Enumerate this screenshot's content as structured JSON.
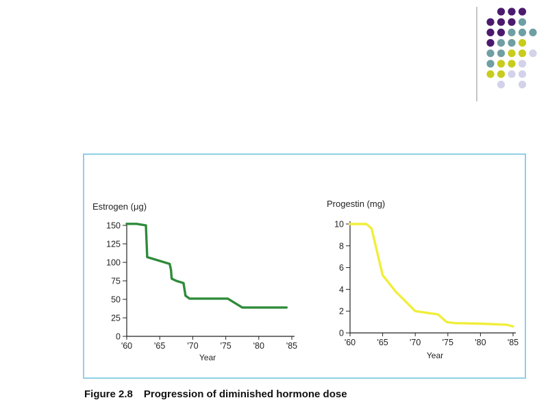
{
  "decoration": {
    "colors": {
      "purple": "#4b1a6e",
      "teal": "#6f9fa3",
      "yellow": "#c9cc1c",
      "lavender": "#d4d2ea",
      "rule": "#b0b0b0"
    }
  },
  "caption": {
    "number": "Figure 2.8",
    "text": "Progression of diminished hormone dose"
  },
  "chart_data": [
    {
      "type": "line",
      "ylabel": "Estrogen (μg)",
      "xlabel": "Year",
      "xlim": [
        1960,
        1985
      ],
      "ylim": [
        0,
        150
      ],
      "x_ticks": [
        1960,
        1965,
        1970,
        1975,
        1980,
        1985
      ],
      "x_tick_labels": [
        "'60",
        "'65",
        "'70",
        "'75",
        "'80",
        "'85"
      ],
      "y_ticks": [
        0,
        25,
        50,
        75,
        100,
        125,
        150
      ],
      "y_tick_labels": [
        "0",
        "25",
        "50",
        "75",
        "100",
        "125",
        "150"
      ],
      "color": "#2e8b3a",
      "series": [
        {
          "x": [
            1960,
            1961.5,
            1962.9,
            1963.1,
            1966.5,
            1966.7,
            1966.8,
            1967.5,
            1968.6,
            1968.9,
            1969.5,
            1975.3,
            1977.5,
            1980,
            1984.2
          ],
          "values": [
            152,
            152,
            150,
            107,
            98,
            90,
            78,
            75,
            72,
            55,
            51,
            51,
            39,
            39,
            39
          ]
        }
      ]
    },
    {
      "type": "line",
      "ylabel": "Progestin (mg)",
      "xlabel": "Year",
      "xlim": [
        1960,
        1985
      ],
      "ylim": [
        0,
        10
      ],
      "x_ticks": [
        1960,
        1965,
        1970,
        1975,
        1980,
        1985
      ],
      "x_tick_labels": [
        "'60",
        "'65",
        "'70",
        "'75",
        "'80",
        "'85"
      ],
      "y_ticks": [
        0,
        2,
        4,
        6,
        8,
        10
      ],
      "y_tick_labels": [
        "0",
        "2",
        "4",
        "6",
        "8",
        "10"
      ],
      "color": "#f0ee3a",
      "series": [
        {
          "x": [
            1960,
            1962.5,
            1963.3,
            1965,
            1967,
            1970,
            1973.5,
            1974.8,
            1976,
            1980,
            1984,
            1985
          ],
          "values": [
            10,
            10,
            9.6,
            5.3,
            3.8,
            2.0,
            1.7,
            1.0,
            0.9,
            0.85,
            0.75,
            0.6
          ]
        }
      ]
    }
  ]
}
